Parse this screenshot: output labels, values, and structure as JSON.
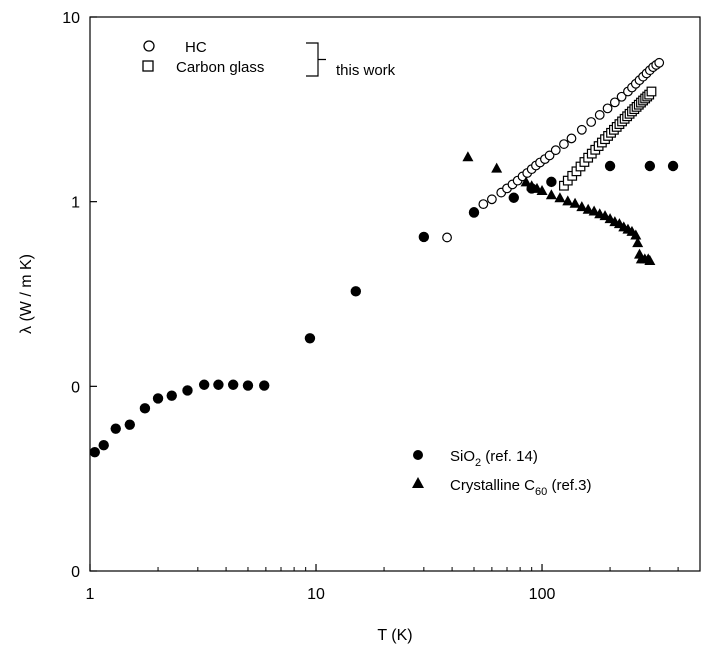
{
  "chart_data": {
    "type": "scatter",
    "xscale": "log",
    "yscale": "log",
    "xlim": [
      1,
      500
    ],
    "ylim": [
      0.01,
      10
    ],
    "xlabel": "T (K)",
    "ylabel": "λ (W / m K)",
    "x_ticks": [
      {
        "value": 1,
        "label": "1"
      },
      {
        "value": 10,
        "label": "10"
      },
      {
        "value": 100,
        "label": "100"
      }
    ],
    "y_ticks": [
      {
        "value": 0.01,
        "label": "0"
      },
      {
        "value": 0.1,
        "label": "0"
      },
      {
        "value": 1,
        "label": "1"
      },
      {
        "value": 10,
        "label": "10"
      }
    ],
    "legend_group_label": "this work",
    "series": [
      {
        "name": "HC",
        "marker": "open-circle",
        "legend_position": "top-left",
        "points": [
          [
            38,
            0.64
          ],
          [
            50,
            0.88
          ],
          [
            55,
            0.97
          ],
          [
            60,
            1.03
          ],
          [
            66,
            1.12
          ],
          [
            70,
            1.18
          ],
          [
            74,
            1.24
          ],
          [
            78,
            1.3
          ],
          [
            82,
            1.37
          ],
          [
            86,
            1.43
          ],
          [
            90,
            1.5
          ],
          [
            94,
            1.57
          ],
          [
            98,
            1.63
          ],
          [
            103,
            1.7
          ],
          [
            108,
            1.78
          ],
          [
            115,
            1.9
          ],
          [
            125,
            2.05
          ],
          [
            135,
            2.2
          ],
          [
            150,
            2.45
          ],
          [
            165,
            2.7
          ],
          [
            180,
            2.95
          ],
          [
            195,
            3.2
          ],
          [
            210,
            3.45
          ],
          [
            225,
            3.7
          ],
          [
            240,
            3.95
          ],
          [
            250,
            4.15
          ],
          [
            260,
            4.35
          ],
          [
            270,
            4.55
          ],
          [
            280,
            4.75
          ],
          [
            290,
            4.95
          ],
          [
            300,
            5.15
          ],
          [
            310,
            5.35
          ],
          [
            320,
            5.5
          ],
          [
            330,
            5.65
          ]
        ]
      },
      {
        "name": "Carbon glass",
        "marker": "open-square",
        "legend_position": "top-left",
        "points": [
          [
            125,
            1.22
          ],
          [
            130,
            1.3
          ],
          [
            136,
            1.38
          ],
          [
            142,
            1.46
          ],
          [
            148,
            1.55
          ],
          [
            154,
            1.64
          ],
          [
            160,
            1.73
          ],
          [
            166,
            1.82
          ],
          [
            172,
            1.91
          ],
          [
            178,
            2.0
          ],
          [
            184,
            2.09
          ],
          [
            190,
            2.18
          ],
          [
            196,
            2.27
          ],
          [
            202,
            2.36
          ],
          [
            208,
            2.45
          ],
          [
            214,
            2.54
          ],
          [
            220,
            2.63
          ],
          [
            226,
            2.72
          ],
          [
            232,
            2.81
          ],
          [
            238,
            2.9
          ],
          [
            244,
            2.99
          ],
          [
            250,
            3.08
          ],
          [
            256,
            3.17
          ],
          [
            262,
            3.26
          ],
          [
            268,
            3.35
          ],
          [
            274,
            3.44
          ],
          [
            280,
            3.53
          ],
          [
            286,
            3.62
          ],
          [
            292,
            3.71
          ],
          [
            298,
            3.8
          ],
          [
            305,
            3.95
          ]
        ]
      },
      {
        "name": "SiO2 (ref. 14)",
        "marker": "filled-circle",
        "legend_position": "bottom-right",
        "points": [
          [
            1.05,
            0.044
          ],
          [
            1.15,
            0.048
          ],
          [
            1.3,
            0.059
          ],
          [
            1.5,
            0.062
          ],
          [
            1.75,
            0.076
          ],
          [
            2.0,
            0.086
          ],
          [
            2.3,
            0.089
          ],
          [
            2.7,
            0.095
          ],
          [
            3.2,
            0.102
          ],
          [
            3.7,
            0.102
          ],
          [
            4.3,
            0.102
          ],
          [
            5.0,
            0.101
          ],
          [
            5.9,
            0.101
          ],
          [
            9.4,
            0.182
          ],
          [
            15,
            0.327
          ],
          [
            30,
            0.644
          ],
          [
            50,
            0.873
          ],
          [
            75,
            1.05
          ],
          [
            90,
            1.18
          ],
          [
            110,
            1.28
          ],
          [
            200,
            1.56
          ],
          [
            300,
            1.56
          ],
          [
            380,
            1.56
          ]
        ]
      },
      {
        "name": "Crystalline C60 (ref.3)",
        "marker": "filled-triangle",
        "legend_position": "bottom-right",
        "points": [
          [
            47,
            1.75
          ],
          [
            63,
            1.52
          ],
          [
            85,
            1.28
          ],
          [
            90,
            1.22
          ],
          [
            95,
            1.18
          ],
          [
            100,
            1.15
          ],
          [
            110,
            1.09
          ],
          [
            120,
            1.05
          ],
          [
            130,
            1.01
          ],
          [
            140,
            0.98
          ],
          [
            150,
            0.94
          ],
          [
            160,
            0.91
          ],
          [
            170,
            0.89
          ],
          [
            180,
            0.86
          ],
          [
            190,
            0.84
          ],
          [
            200,
            0.81
          ],
          [
            210,
            0.78
          ],
          [
            220,
            0.76
          ],
          [
            230,
            0.73
          ],
          [
            240,
            0.71
          ],
          [
            250,
            0.69
          ],
          [
            260,
            0.66
          ],
          [
            265,
            0.6
          ],
          [
            270,
            0.52
          ],
          [
            275,
            0.49
          ],
          [
            285,
            0.49
          ],
          [
            295,
            0.49
          ],
          [
            300,
            0.48
          ]
        ]
      }
    ]
  }
}
